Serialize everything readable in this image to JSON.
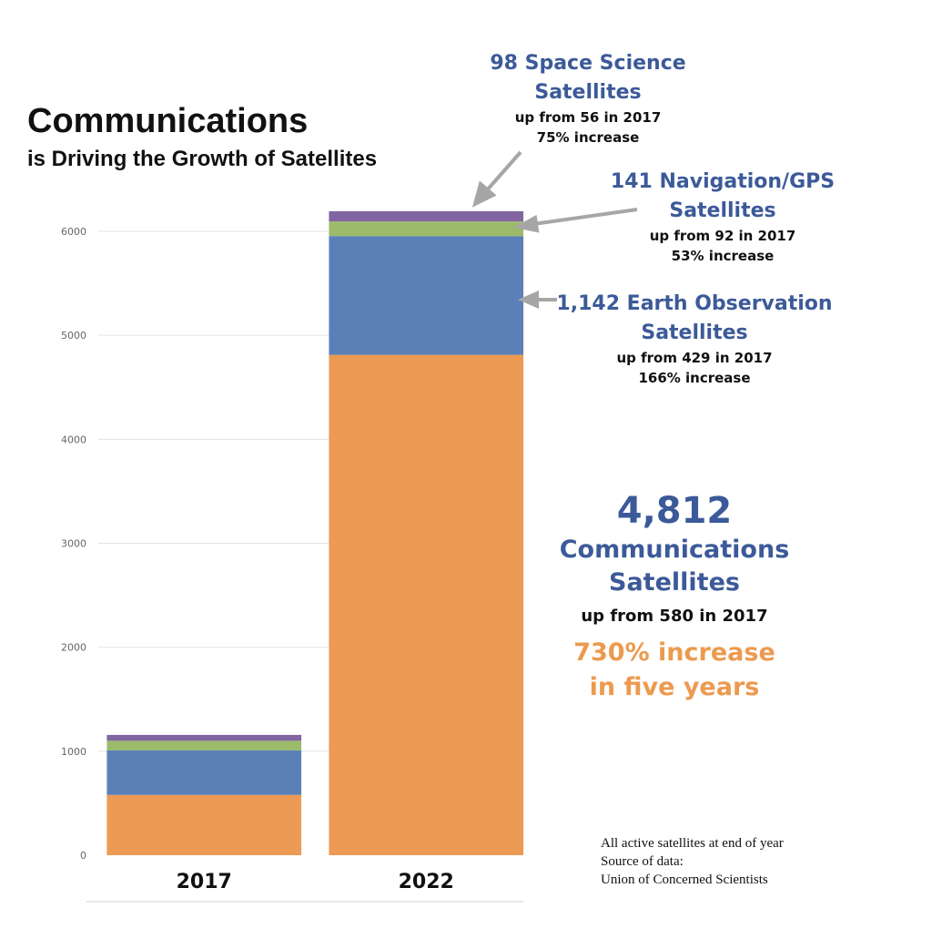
{
  "chart_data": {
    "type": "bar",
    "stacked": true,
    "title": "Communications",
    "subtitle": "is Driving the Growth of Satellites",
    "categories": [
      "2017",
      "2022"
    ],
    "series": [
      {
        "name": "Communications",
        "color": "#ec9a54",
        "values": [
          580,
          4812
        ]
      },
      {
        "name": "Earth Observation",
        "color": "#5b80b8",
        "values": [
          429,
          1142
        ]
      },
      {
        "name": "Navigation/GPS",
        "color": "#9bbb6b",
        "values": [
          92,
          141
        ]
      },
      {
        "name": "Space Science",
        "color": "#8165a0",
        "values": [
          56,
          98
        ]
      }
    ],
    "ylim": [
      0,
      6000
    ],
    "yticks": [
      "0",
      "1000",
      "2000",
      "3000",
      "4000",
      "5000",
      "6000"
    ],
    "grid": true
  },
  "annotations": {
    "space_science": {
      "head1": "98 Space Science",
      "head2": "Satellites",
      "sub1": "up from 56 in 2017",
      "sub2": "75% increase"
    },
    "navigation": {
      "head1": "141 Navigation/GPS",
      "head2": "Satellites",
      "sub1": "up from 92 in 2017",
      "sub2": "53% increase"
    },
    "earth_obs": {
      "head1": "1,142 Earth Observation",
      "head2": "Satellites",
      "sub1": "up from 429 in 2017",
      "sub2": "166% increase"
    },
    "communications": {
      "number": "4,812",
      "head1": "Communications",
      "head2": "Satellites",
      "sub": "up from 580 in 2017",
      "inc1": "730% increase",
      "inc2": "in five years"
    }
  },
  "source": {
    "line1": "All active satellites at end of year",
    "line2": "Source of data:",
    "line3": "Union of Concerned Scientists"
  }
}
